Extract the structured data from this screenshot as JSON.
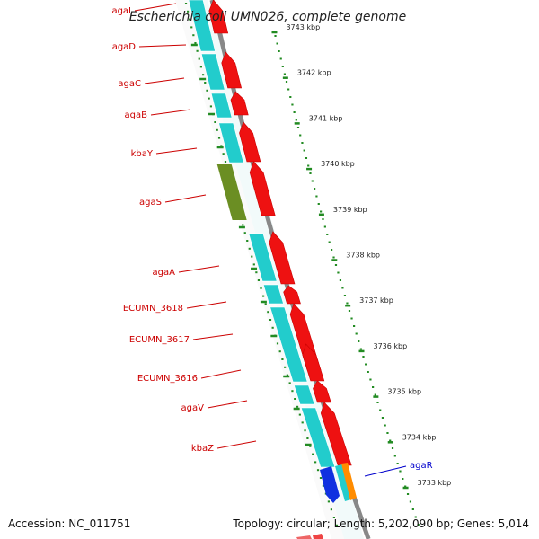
{
  "title": "Escherichia coli UMN026, complete genome",
  "footer": {
    "accession": "Accession: NC_011751",
    "summary": "Topology: circular; Length: 5,202,090 bp; Genes: 5,014"
  },
  "colors": {
    "backbone": "#888888",
    "cds_forward": "#ee1111",
    "rna_track": "#22cccc",
    "regulatory": "#6b8e23",
    "tick": "#228b22",
    "label_reverse": "#cc0000",
    "label_forward": "#0000cc",
    "blue_feature": "#1030e0",
    "orange_feature": "#ff8c00"
  },
  "ticks": [
    "3743 kbp",
    "3742 kbp",
    "3741 kbp",
    "3740 kbp",
    "3739 kbp",
    "3738 kbp",
    "3737 kbp",
    "3736 kbp",
    "3735 kbp",
    "3734 kbp",
    "3733 kbp"
  ],
  "genes": [
    {
      "name": "agaI",
      "strand": "reverse"
    },
    {
      "name": "agaD",
      "strand": "reverse"
    },
    {
      "name": "agaC",
      "strand": "reverse"
    },
    {
      "name": "agaB",
      "strand": "reverse"
    },
    {
      "name": "kbaY",
      "strand": "reverse"
    },
    {
      "name": "agaS",
      "strand": "reverse"
    },
    {
      "name": "agaA",
      "strand": "reverse"
    },
    {
      "name": "ECUMN_3618",
      "strand": "reverse"
    },
    {
      "name": "ECUMN_3617",
      "strand": "reverse"
    },
    {
      "name": "ECUMN_3616",
      "strand": "reverse"
    },
    {
      "name": "agaV",
      "strand": "reverse"
    },
    {
      "name": "kbaZ",
      "strand": "reverse"
    },
    {
      "name": "agaR",
      "strand": "forward"
    }
  ]
}
